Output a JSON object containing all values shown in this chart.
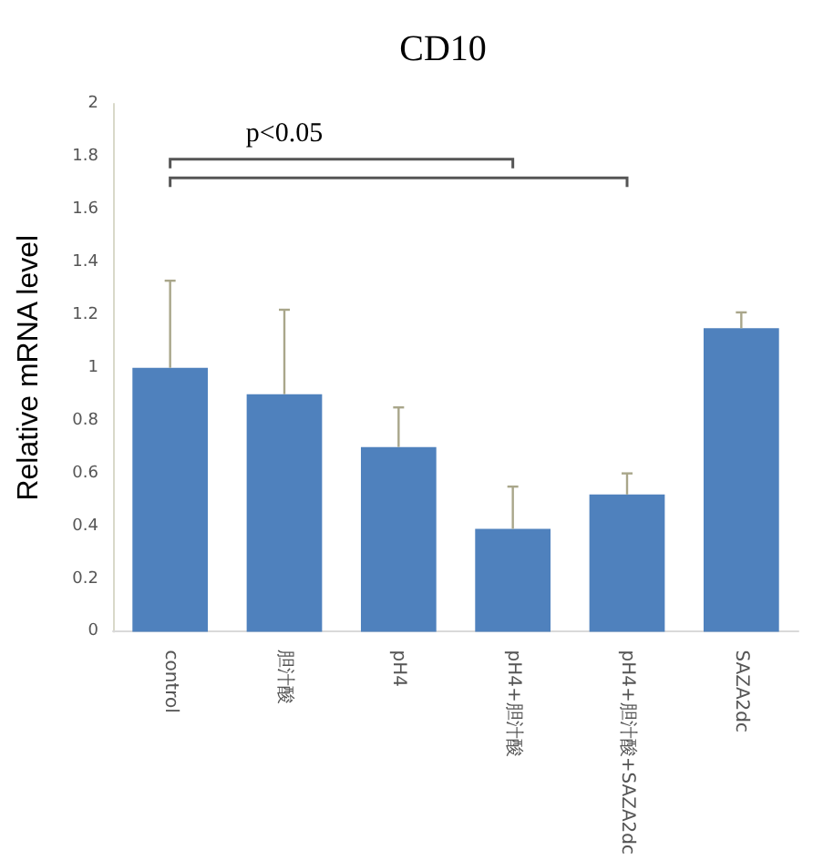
{
  "chart_data": {
    "type": "bar",
    "title": "CD10",
    "ylabel": "Relative mRNA level",
    "categories": [
      "control",
      "胆汁酸",
      "pH4",
      "pH4+胆汁酸",
      "pH4+胆汁酸+SAZA2dc",
      "SAZA2dc"
    ],
    "values": [
      1.0,
      0.9,
      0.7,
      0.39,
      0.52,
      1.15
    ],
    "errors": [
      [
        1.0,
        1.33
      ],
      [
        0.9,
        1.22
      ],
      [
        0.7,
        0.85
      ],
      [
        0.39,
        0.55
      ],
      [
        0.52,
        0.6
      ],
      [
        1.15,
        1.21
      ]
    ],
    "color": "#4f81bd",
    "ylim": [
      0,
      2
    ],
    "yticks": [
      0,
      0.2,
      0.4,
      0.6,
      0.8,
      1,
      1.2,
      1.4,
      1.6,
      1.8,
      2
    ],
    "grid": false,
    "annotations": [
      "p<0.05"
    ]
  }
}
